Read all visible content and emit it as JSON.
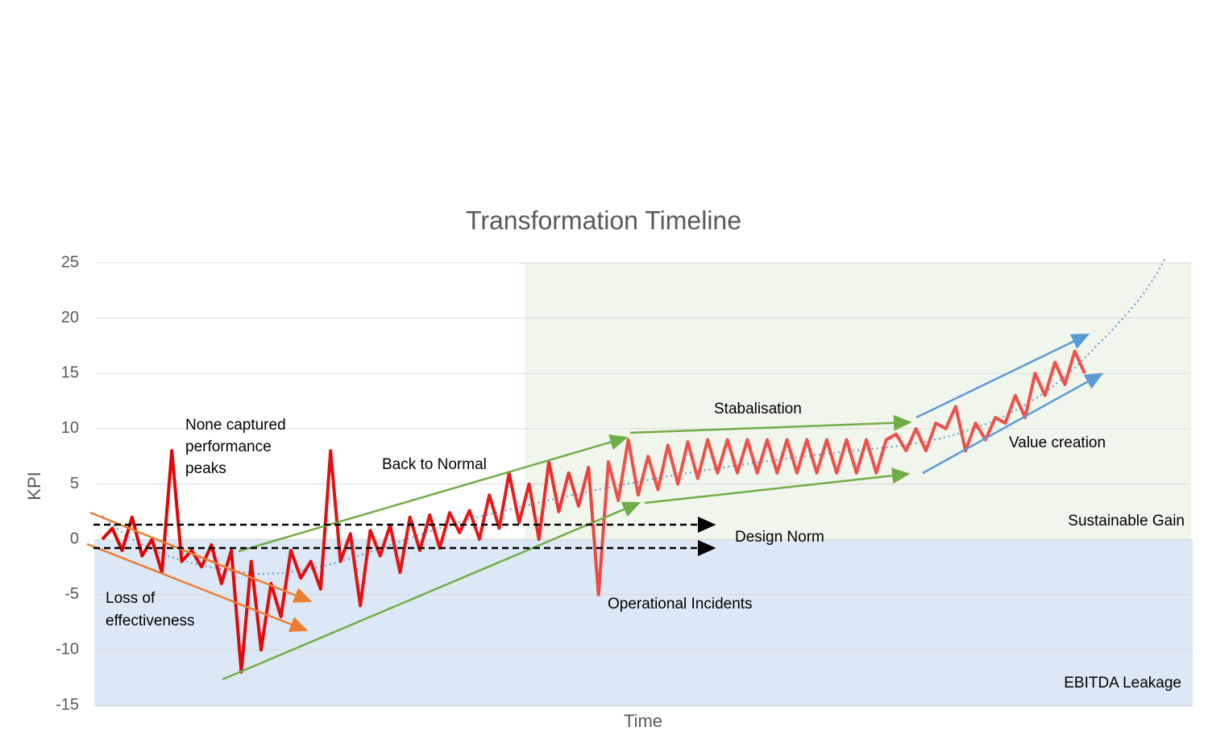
{
  "chart_data": {
    "type": "line",
    "title": "Transformation Timeline",
    "x_label": "Time",
    "y_label": "KPI",
    "values": [
      0,
      1,
      -1,
      2,
      -1.5,
      0,
      -3,
      8,
      -2,
      -1,
      -2.5,
      -0.5,
      -4,
      -1,
      -12,
      -2,
      -10,
      -4,
      -7,
      -1,
      -3.5,
      -2,
      -4.5,
      8,
      -2,
      0.5,
      -6,
      0.8,
      -1.5,
      1.3,
      -3,
      2,
      -1,
      2.2,
      -0.8,
      2.4,
      0.6,
      2.6,
      0,
      4,
      1,
      6,
      1.5,
      5,
      0,
      7,
      2.5,
      6,
      3,
      6.5,
      -5,
      7,
      3.5,
      9,
      4,
      7.5,
      4.5,
      8.5,
      5,
      8.8,
      5.5,
      9,
      6,
      9,
      6,
      9,
      6,
      9,
      6,
      9,
      6,
      9,
      6,
      9,
      6,
      9,
      6,
      9,
      6,
      9,
      9.5,
      8,
      10,
      8,
      10.5,
      10,
      12,
      8,
      10.5,
      9,
      11,
      10.5,
      13,
      11,
      15,
      13,
      16,
      14,
      17,
      15
    ],
    "color": "#e81a1a",
    "ylim": [
      -15,
      25
    ],
    "yticks": [
      -15,
      -10,
      -5,
      0,
      5,
      10,
      15,
      20,
      25
    ],
    "grid": true,
    "annotations": [
      "None captured",
      "performance",
      "peaks",
      "Back to Normal",
      "Stabalisation",
      "Value creation",
      "Sustainable Gain",
      "Design Norm",
      "Operational Incidents",
      "Loss of",
      "effectiveness",
      "EBITDA Leakage"
    ]
  }
}
